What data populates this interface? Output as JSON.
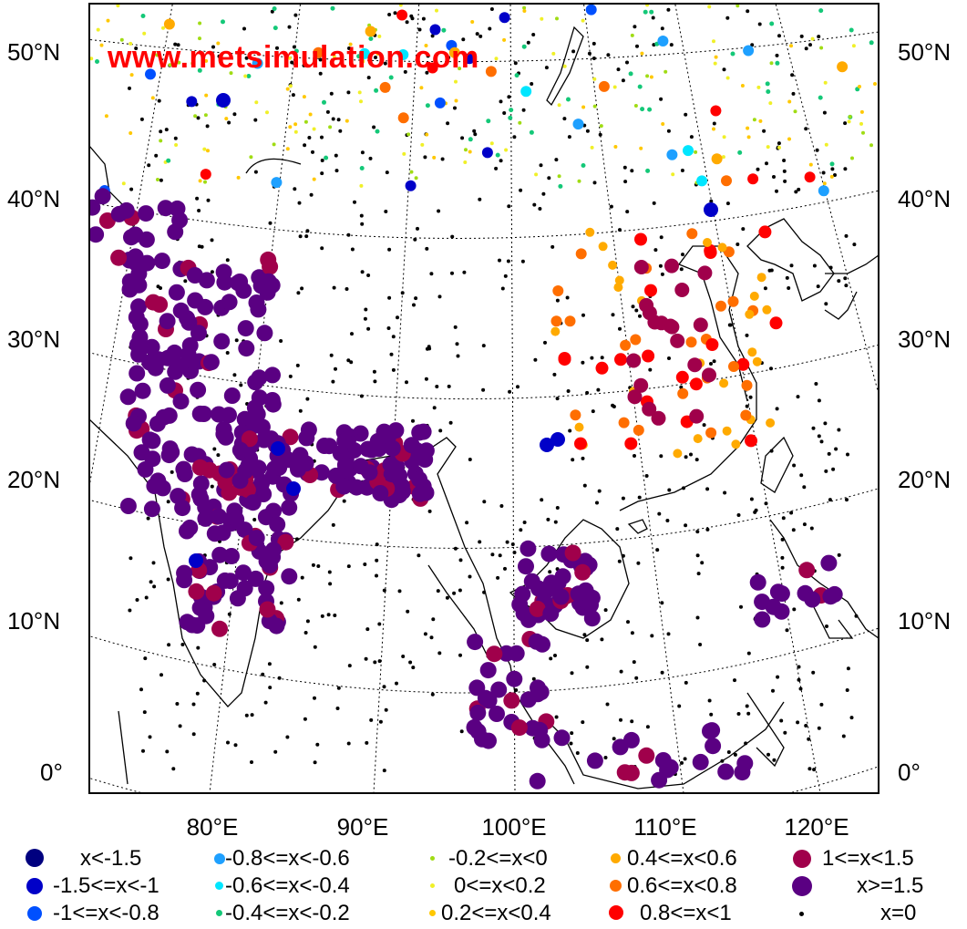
{
  "watermark": "www.metsimulation.com",
  "lat_labels": [
    "50°N",
    "40°N",
    "30°N",
    "20°N",
    "10°N",
    "0°"
  ],
  "lon_labels": [
    "80°E",
    "90°E",
    "100°E",
    "110°E",
    "120°E"
  ],
  "legend": [
    {
      "label": "x<-1.5",
      "color": "#00007f"
    },
    {
      "label": "-1.5<=x<-1",
      "color": "#0000c8"
    },
    {
      "label": "-1<=x<-0.8",
      "color": "#0050ff"
    },
    {
      "label": "-0.8<=x<-0.6",
      "color": "#1ea0ff"
    },
    {
      "label": "-0.6<=x<-0.4",
      "color": "#00e6ff"
    },
    {
      "label": "-0.4<=x<-0.2",
      "color": "#14c878"
    },
    {
      "label": "-0.2<=x<0",
      "color": "#a0dc14"
    },
    {
      "label": "0<=x<0.2",
      "color": "#f0f028"
    },
    {
      "label": "0.2<=x<0.4",
      "color": "#ffc800"
    },
    {
      "label": "0.4<=x<0.6",
      "color": "#ffaa00"
    },
    {
      "label": "0.6<=x<0.8",
      "color": "#ff6e00"
    },
    {
      "label": "0.8<=x<1",
      "color": "#ff0000"
    },
    {
      "label": "1<=x<1.5",
      "color": "#a0004b"
    },
    {
      "label": "x>=1.5",
      "color": "#5a0082"
    },
    {
      "label": "x=0",
      "color": "#000000"
    }
  ],
  "colors": {
    "frame": "#000000",
    "graticule": "#000000",
    "coastline": "#000000"
  }
}
